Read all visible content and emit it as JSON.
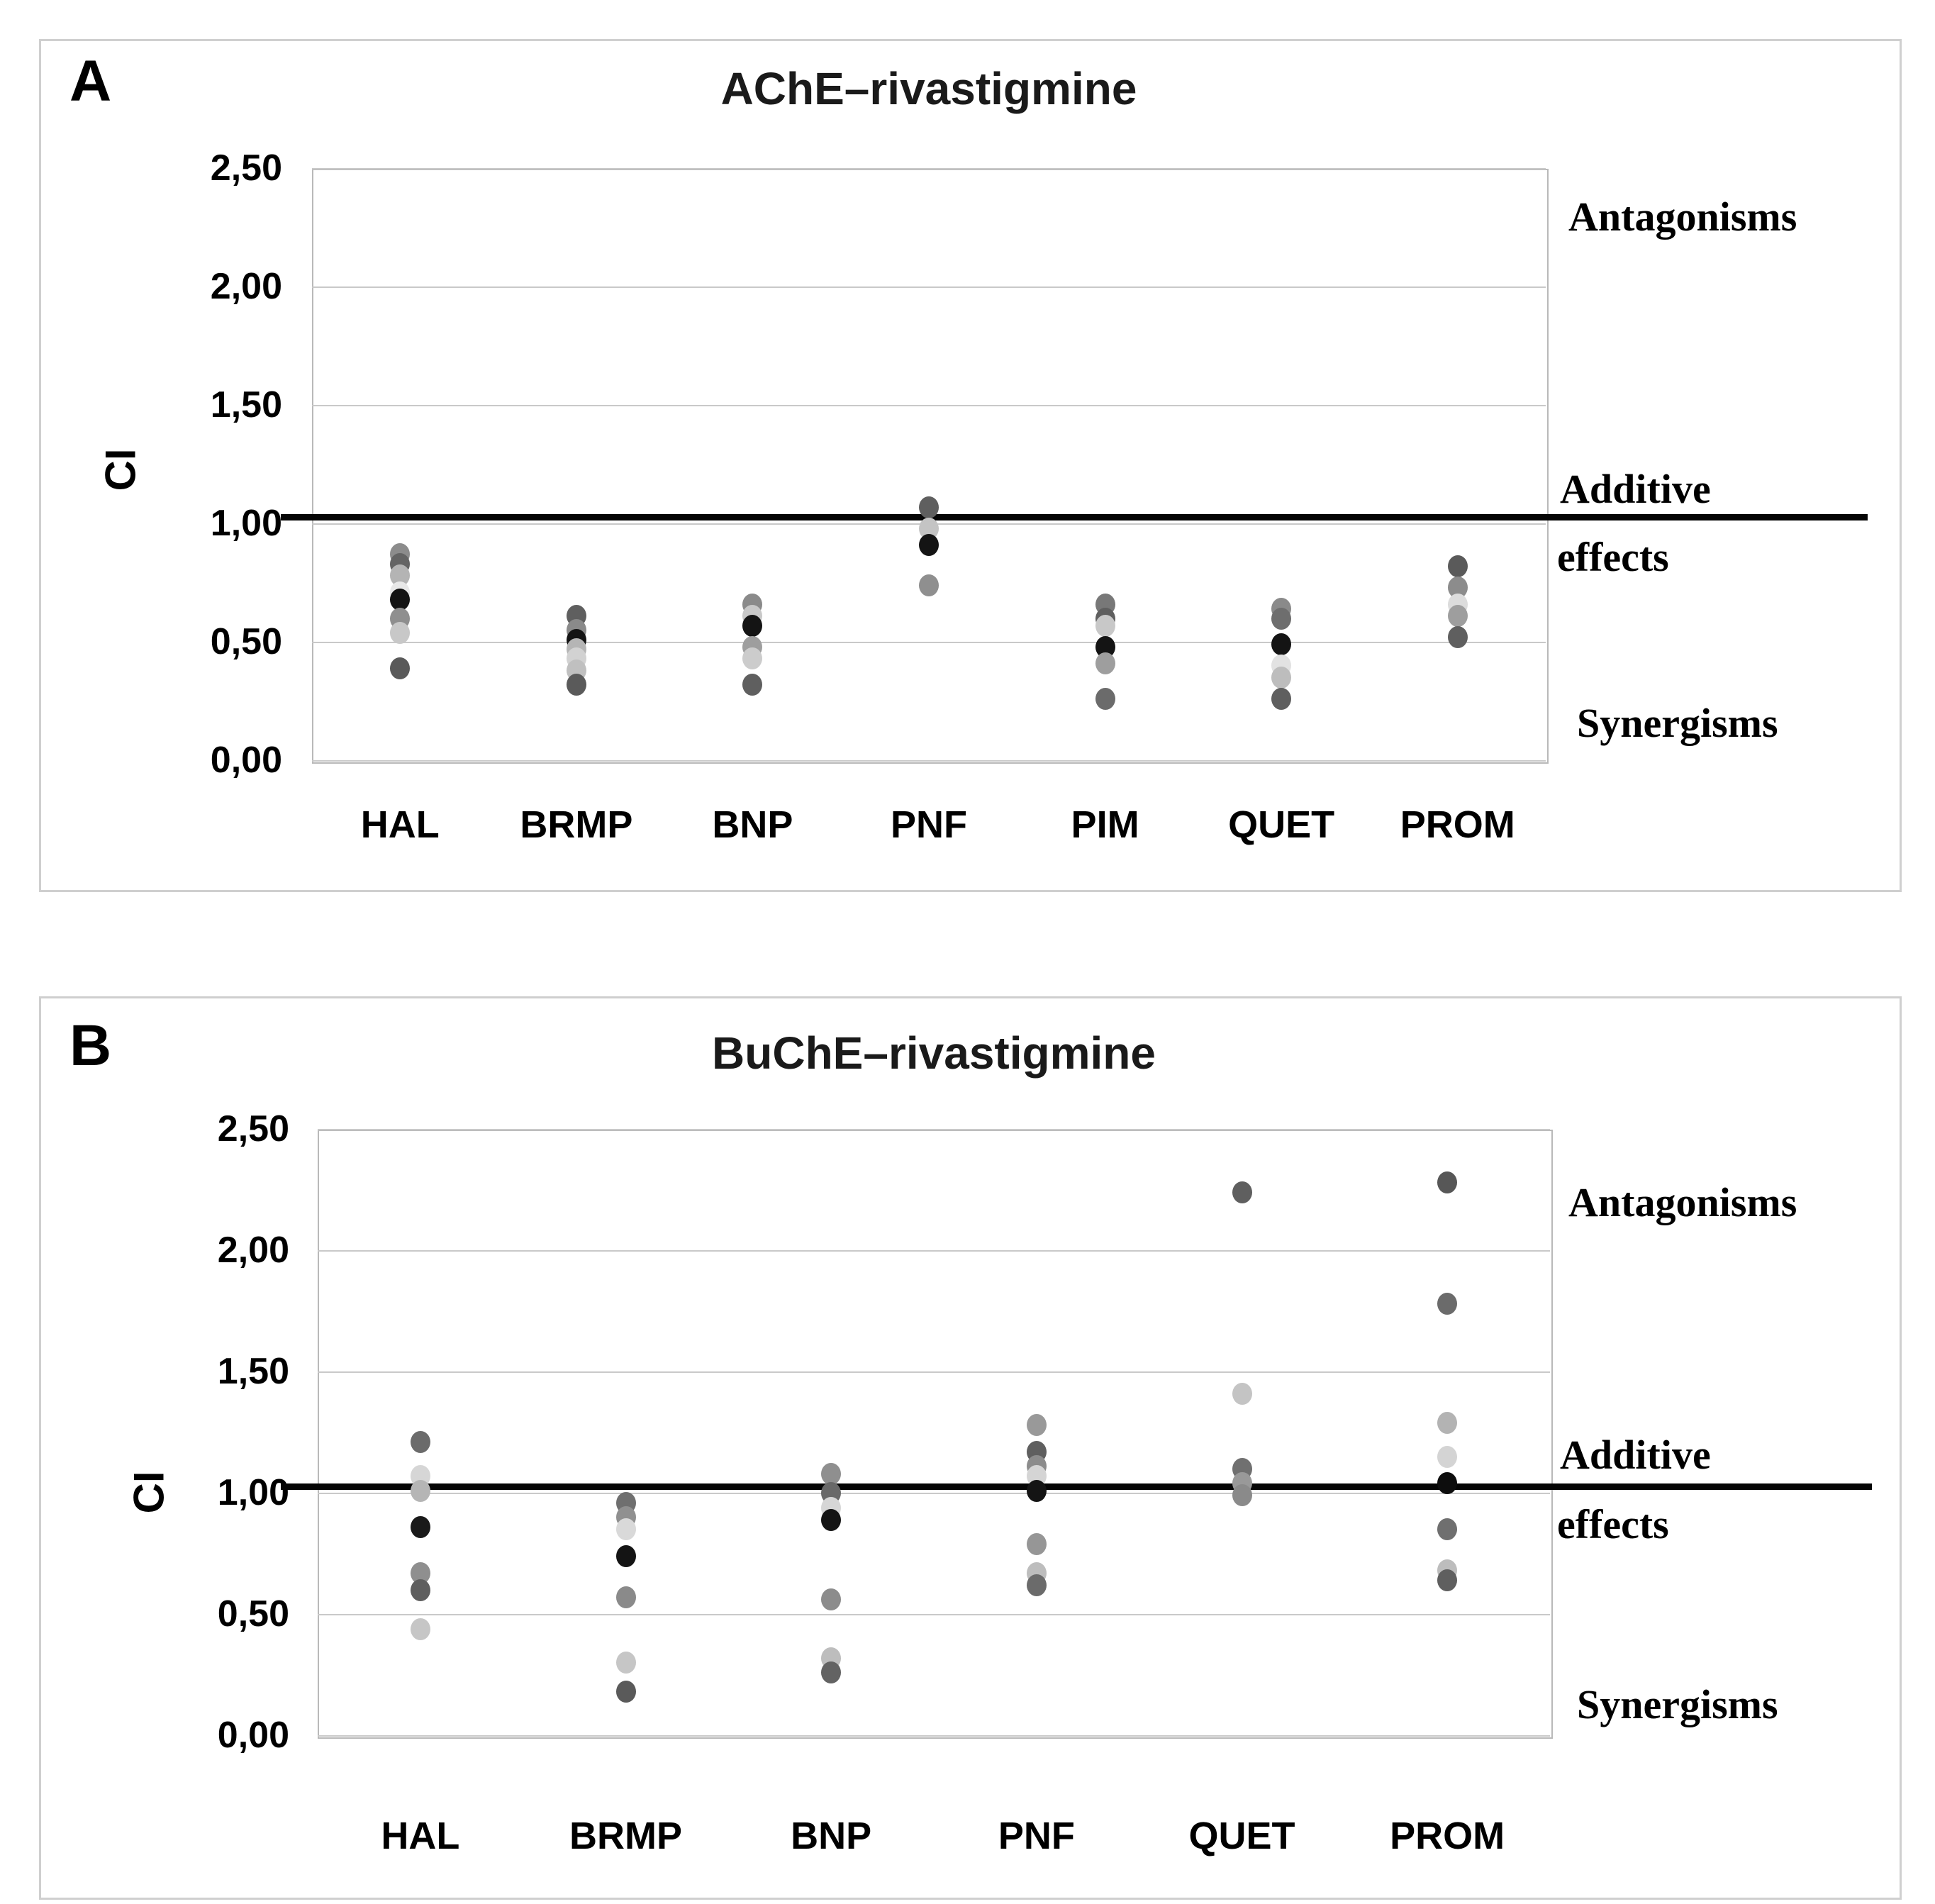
{
  "figure": {
    "panel_count": 2,
    "background_color": "#ffffff",
    "border_color": "#cfcfcf",
    "additive_line_color": "#050505",
    "gridline_color": "#c9c9c9"
  },
  "chart_data": [
    {
      "type": "scatter",
      "panel_letter": "A",
      "title": "AChE–rivastigmine",
      "ylabel": "CI",
      "ylim": [
        0,
        2.5
      ],
      "grid": true,
      "ytick_labels": [
        "2,50",
        "2,00",
        "1,50",
        "1,00",
        "0,50",
        "0,00"
      ],
      "ytick_values": [
        2.5,
        2.0,
        1.5,
        1.0,
        0.5,
        0.0
      ],
      "additive_line_ci": 1.03,
      "annotations": {
        "top": "Antagonisms",
        "mid_line1": "Additive",
        "mid_line2": "effects",
        "bottom": "Synergisms"
      },
      "categories": [
        "HAL",
        "BRMP",
        "BNP",
        "PNF",
        "PIM",
        "QUET",
        "PROM"
      ],
      "points_by_category": [
        {
          "category": "HAL",
          "points": [
            {
              "ci": 0.87,
              "shade": "#8c8c8c"
            },
            {
              "ci": 0.83,
              "shade": "#646464"
            },
            {
              "ci": 0.78,
              "shade": "#b4b4b4"
            },
            {
              "ci": 0.71,
              "shade": "#e8e8e8"
            },
            {
              "ci": 0.68,
              "shade": "#141414"
            },
            {
              "ci": 0.6,
              "shade": "#8f8f8f"
            },
            {
              "ci": 0.54,
              "shade": "#c8c8c8"
            },
            {
              "ci": 0.39,
              "shade": "#5a5a5a"
            }
          ]
        },
        {
          "category": "BRMP",
          "points": [
            {
              "ci": 0.61,
              "shade": "#5f5f5f"
            },
            {
              "ci": 0.55,
              "shade": "#8a8a8a"
            },
            {
              "ci": 0.51,
              "shade": "#141414"
            },
            {
              "ci": 0.47,
              "shade": "#b5b5b5"
            },
            {
              "ci": 0.43,
              "shade": "#d2d2d2"
            },
            {
              "ci": 0.38,
              "shade": "#c0c0c0"
            },
            {
              "ci": 0.32,
              "shade": "#5a5a5a"
            }
          ]
        },
        {
          "category": "BNP",
          "points": [
            {
              "ci": 0.66,
              "shade": "#8a8a8a"
            },
            {
              "ci": 0.61,
              "shade": "#c8c8c8"
            },
            {
              "ci": 0.57,
              "shade": "#141414"
            },
            {
              "ci": 0.48,
              "shade": "#9e9e9e"
            },
            {
              "ci": 0.43,
              "shade": "#cccccc"
            },
            {
              "ci": 0.32,
              "shade": "#5f5f5f"
            }
          ]
        },
        {
          "category": "PNF",
          "points": [
            {
              "ci": 1.07,
              "shade": "#5f5f5f"
            },
            {
              "ci": 0.98,
              "shade": "#c4c4c4"
            },
            {
              "ci": 0.91,
              "shade": "#141414"
            },
            {
              "ci": 0.74,
              "shade": "#8f8f8f"
            }
          ]
        },
        {
          "category": "PIM",
          "points": [
            {
              "ci": 0.66,
              "shade": "#787878"
            },
            {
              "ci": 0.6,
              "shade": "#5f5f5f"
            },
            {
              "ci": 0.57,
              "shade": "#c8c8c8"
            },
            {
              "ci": 0.48,
              "shade": "#141414"
            },
            {
              "ci": 0.41,
              "shade": "#9e9e9e"
            },
            {
              "ci": 0.26,
              "shade": "#6b6b6b"
            }
          ]
        },
        {
          "category": "QUET",
          "points": [
            {
              "ci": 0.64,
              "shade": "#8a8a8a"
            },
            {
              "ci": 0.6,
              "shade": "#6e6e6e"
            },
            {
              "ci": 0.49,
              "shade": "#141414"
            },
            {
              "ci": 0.4,
              "shade": "#e2e2e2"
            },
            {
              "ci": 0.35,
              "shade": "#bdbdbd"
            },
            {
              "ci": 0.26,
              "shade": "#5f5f5f"
            }
          ]
        },
        {
          "category": "PROM",
          "points": [
            {
              "ci": 0.82,
              "shade": "#5a5a5a"
            },
            {
              "ci": 0.73,
              "shade": "#8c8c8c"
            },
            {
              "ci": 0.66,
              "shade": "#dcdcdc"
            },
            {
              "ci": 0.61,
              "shade": "#9e9e9e"
            },
            {
              "ci": 0.52,
              "shade": "#5f5f5f"
            }
          ]
        }
      ]
    },
    {
      "type": "scatter",
      "panel_letter": "B",
      "title": "BuChE–rivastigmine",
      "ylabel": "CI",
      "ylim": [
        0,
        2.5
      ],
      "grid": true,
      "ytick_labels": [
        "2,50",
        "2,00",
        "1,50",
        "1,00",
        "0,50",
        "0,00"
      ],
      "ytick_values": [
        2.5,
        2.0,
        1.5,
        1.0,
        0.5,
        0.0
      ],
      "additive_line_ci": 1.03,
      "annotations": {
        "top": "Antagonisms",
        "mid_line1": "Additive",
        "mid_line2": "effects",
        "bottom": "Synergisms"
      },
      "categories": [
        "HAL",
        "BRMP",
        "BNP",
        "PNF",
        "QUET",
        "PROM"
      ],
      "points_by_category": [
        {
          "category": "HAL",
          "points": [
            {
              "ci": 1.21,
              "shade": "#6b6b6b"
            },
            {
              "ci": 1.07,
              "shade": "#d6d6d6"
            },
            {
              "ci": 1.01,
              "shade": "#b5b5b5"
            },
            {
              "ci": 0.86,
              "shade": "#1a1a1a"
            },
            {
              "ci": 0.67,
              "shade": "#8f8f8f"
            },
            {
              "ci": 0.6,
              "shade": "#5f5f5f"
            },
            {
              "ci": 0.44,
              "shade": "#c6c6c6"
            }
          ]
        },
        {
          "category": "BRMP",
          "points": [
            {
              "ci": 0.96,
              "shade": "#6f6f6f"
            },
            {
              "ci": 0.9,
              "shade": "#909090"
            },
            {
              "ci": 0.85,
              "shade": "#d9d9d9"
            },
            {
              "ci": 0.74,
              "shade": "#141414"
            },
            {
              "ci": 0.57,
              "shade": "#8a8a8a"
            },
            {
              "ci": 0.3,
              "shade": "#c6c6c6"
            },
            {
              "ci": 0.18,
              "shade": "#5a5a5a"
            }
          ]
        },
        {
          "category": "BNP",
          "points": [
            {
              "ci": 1.08,
              "shade": "#8f8f8f"
            },
            {
              "ci": 1.0,
              "shade": "#696969"
            },
            {
              "ci": 0.94,
              "shade": "#d6d6d6"
            },
            {
              "ci": 0.89,
              "shade": "#141414"
            },
            {
              "ci": 0.56,
              "shade": "#8c8c8c"
            },
            {
              "ci": 0.32,
              "shade": "#bdbdbd"
            },
            {
              "ci": 0.26,
              "shade": "#636363"
            }
          ]
        },
        {
          "category": "PNF",
          "points": [
            {
              "ci": 1.28,
              "shade": "#999999"
            },
            {
              "ci": 1.17,
              "shade": "#5f5f5f"
            },
            {
              "ci": 1.11,
              "shade": "#8c8c8c"
            },
            {
              "ci": 1.07,
              "shade": "#d5d5d5"
            },
            {
              "ci": 1.01,
              "shade": "#141414"
            },
            {
              "ci": 0.79,
              "shade": "#969696"
            },
            {
              "ci": 0.67,
              "shade": "#bdbdbd"
            },
            {
              "ci": 0.62,
              "shade": "#6b6b6b"
            }
          ]
        },
        {
          "category": "QUET",
          "points": [
            {
              "ci": 2.24,
              "shade": "#5f5f5f"
            },
            {
              "ci": 1.41,
              "shade": "#c4c4c4"
            },
            {
              "ci": 1.1,
              "shade": "#707070"
            },
            {
              "ci": 1.04,
              "shade": "#999999"
            },
            {
              "ci": 0.99,
              "shade": "#8a8a8a"
            }
          ]
        },
        {
          "category": "PROM",
          "points": [
            {
              "ci": 2.28,
              "shade": "#575757"
            },
            {
              "ci": 1.78,
              "shade": "#6b6b6b"
            },
            {
              "ci": 1.29,
              "shade": "#b3b3b3"
            },
            {
              "ci": 1.15,
              "shade": "#d4d4d4"
            },
            {
              "ci": 1.04,
              "shade": "#0d0d0d"
            },
            {
              "ci": 0.85,
              "shade": "#6f6f6f"
            },
            {
              "ci": 0.68,
              "shade": "#bdbdbd"
            },
            {
              "ci": 0.64,
              "shade": "#5f5f5f"
            }
          ]
        }
      ]
    }
  ]
}
